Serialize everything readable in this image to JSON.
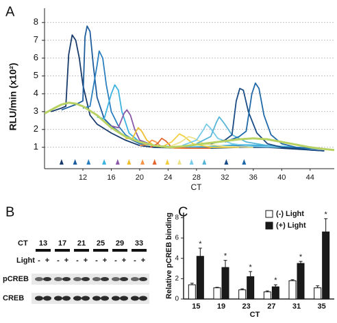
{
  "panel_labels": [
    "A",
    "B",
    "C"
  ],
  "chart_data": [
    {
      "type": "line",
      "ylabel": "RLU/min (x10²)",
      "xlabel": "CT",
      "xlim": [
        6.6,
        47.4
      ],
      "xticks": [
        12,
        16,
        20,
        24,
        28,
        32,
        36,
        40,
        44
      ],
      "ylim": [
        -0.2,
        8.8
      ],
      "yticks": [
        1,
        2,
        3,
        4,
        5,
        6,
        7,
        8
      ],
      "grid": true,
      "series": [
        {
          "color": "#173a6b",
          "x": [
            7.5,
            9,
            9.6,
            10,
            10.5,
            11,
            11.5,
            12,
            13,
            14,
            16,
            18,
            20,
            22,
            26,
            30,
            34,
            38,
            42,
            46
          ],
          "values": [
            3.0,
            3.2,
            3.3,
            6.2,
            7.3,
            7.0,
            6.0,
            4.5,
            2.8,
            2.3,
            1.8,
            1.4,
            1.1,
            1.0,
            0.95,
            0.95,
            1.0,
            1.0,
            0.9,
            0.8
          ]
        },
        {
          "color": "#1d5c9c",
          "x": [
            9,
            11,
            12,
            12.3,
            12.6,
            13,
            13.5,
            14,
            15,
            16,
            18,
            20,
            24,
            28,
            32,
            36,
            40,
            44,
            46
          ],
          "values": [
            3.1,
            3.4,
            3.6,
            7.2,
            7.8,
            7.5,
            5.5,
            3.8,
            2.6,
            2.2,
            1.6,
            1.2,
            1.0,
            0.95,
            1.0,
            1.1,
            1.05,
            0.95,
            0.9
          ]
        },
        {
          "color": "#2c7fbf",
          "x": [
            12,
            13,
            14,
            14.3,
            14.8,
            15.3,
            16,
            17,
            18,
            20,
            24,
            28,
            32,
            36,
            40,
            44
          ],
          "values": [
            3.2,
            3.3,
            5.6,
            6.4,
            6.0,
            4.5,
            3.0,
            2.2,
            1.7,
            1.2,
            1.0,
            1.0,
            1.05,
            1.1,
            1.0,
            0.9
          ]
        },
        {
          "color": "#3db2e0",
          "x": [
            14,
            15,
            16,
            16.5,
            17,
            17.5,
            18.5,
            20,
            22,
            26,
            30,
            34,
            38,
            42,
            46
          ],
          "values": [
            2.7,
            2.6,
            4.0,
            4.5,
            4.2,
            3.0,
            1.8,
            1.3,
            1.1,
            1.0,
            1.05,
            1.15,
            1.1,
            1.0,
            0.9
          ]
        },
        {
          "color": "#8a58a6",
          "x": [
            16,
            17,
            17.8,
            18.2,
            18.7,
            19.3,
            20,
            22,
            24
          ],
          "values": [
            2.2,
            2.1,
            2.9,
            3.1,
            2.8,
            2.0,
            1.4,
            1.1,
            1.0
          ]
        },
        {
          "color": "#efc02e",
          "x": [
            18,
            19,
            19.5,
            19.8,
            20.3,
            21,
            22,
            24,
            26
          ],
          "values": [
            1.5,
            1.5,
            1.9,
            2.1,
            1.9,
            1.4,
            1.1,
            1.0,
            0.95
          ]
        },
        {
          "color": "#f3944a",
          "x": [
            20,
            21,
            21.7,
            22.3,
            23,
            25,
            28
          ],
          "values": [
            1.1,
            1.15,
            1.4,
            1.3,
            1.05,
            0.95,
            0.95
          ]
        },
        {
          "color": "#e2642f",
          "x": [
            21.5,
            22.5,
            23.1,
            23.7,
            24.5,
            27,
            30
          ],
          "values": [
            1.0,
            1.2,
            1.5,
            1.35,
            1.0,
            0.95,
            0.95
          ]
        },
        {
          "color": "#f2cf3c",
          "x": [
            23,
            24.5,
            25.6,
            26.3,
            27.5,
            30,
            34
          ],
          "values": [
            1.0,
            1.3,
            1.75,
            1.6,
            1.2,
            1.0,
            1.0
          ]
        },
        {
          "color": "#ede28a",
          "x": [
            24,
            25.8,
            26.9,
            27.7,
            29,
            32,
            36
          ],
          "values": [
            1.0,
            1.3,
            1.6,
            1.5,
            1.2,
            1.05,
            1.0
          ]
        },
        {
          "color": "#78cbe8",
          "x": [
            26,
            28,
            29,
            29.4,
            29.9,
            31,
            33,
            36,
            40,
            44,
            46
          ],
          "values": [
            1.1,
            1.4,
            2.0,
            2.3,
            2.1,
            1.5,
            1.2,
            1.05,
            1.0,
            0.95,
            0.9
          ]
        },
        {
          "color": "#56b5d6",
          "x": [
            28,
            30,
            30.8,
            31.2,
            31.8,
            33,
            35,
            38,
            42,
            46
          ],
          "values": [
            1.2,
            1.6,
            2.4,
            2.7,
            2.4,
            1.7,
            1.3,
            1.1,
            0.95,
            0.9
          ]
        },
        {
          "color": "#184a85",
          "x": [
            30,
            32,
            33,
            33.6,
            34.1,
            34.6,
            35.3,
            36.5,
            38,
            40,
            42,
            44,
            46
          ],
          "values": [
            1.2,
            1.4,
            1.7,
            3.6,
            4.3,
            4.2,
            3.0,
            1.8,
            1.2,
            1.0,
            0.95,
            0.85,
            0.8
          ]
        },
        {
          "color": "#1f68a8",
          "x": [
            32,
            34,
            35,
            35.8,
            36.3,
            36.8,
            37.5,
            38.5,
            40,
            42,
            44,
            46
          ],
          "values": [
            1.3,
            1.6,
            1.9,
            4.0,
            4.6,
            4.3,
            2.8,
            1.7,
            1.2,
            1.0,
            0.95,
            0.9
          ]
        },
        {
          "color": "#b7d162",
          "x": [
            6.6,
            8,
            9,
            10,
            11,
            12,
            14,
            16,
            18,
            20,
            22,
            24,
            26,
            28,
            30,
            32,
            34,
            36,
            38,
            40,
            42,
            44,
            46,
            47.4
          ],
          "values": [
            2.9,
            3.2,
            3.4,
            3.5,
            3.45,
            3.3,
            2.8,
            2.1,
            1.6,
            1.3,
            1.1,
            1.0,
            1.05,
            1.15,
            1.25,
            1.35,
            1.45,
            1.5,
            1.45,
            1.3,
            1.15,
            1.0,
            0.9,
            0.85
          ]
        }
      ],
      "arrows": {
        "x": [
          9.0,
          10.9,
          12.8,
          15.0,
          16.9,
          18.5,
          20.4,
          22.1,
          23.9,
          25.6,
          27.3,
          29.1,
          32.2,
          34.7
        ],
        "colors": [
          "#173a6b",
          "#1d5c9c",
          "#2c7fbf",
          "#3db2e0",
          "#8a58a6",
          "#efc02e",
          "#f3944a",
          "#e2642f",
          "#f2cf3c",
          "#ede28a",
          "#78cbe8",
          "#56b5d6",
          "#184a85",
          "#1f68a8"
        ]
      }
    },
    {
      "type": "bar",
      "ylabel": "Relative pCREB binding",
      "xlabel": "CT",
      "categories": [
        "15",
        "19",
        "23",
        "27",
        "31",
        "35"
      ],
      "ylim": [
        0,
        8.5
      ],
      "yticks": [
        0,
        2,
        4,
        6,
        8
      ],
      "legend": "top-right",
      "series": [
        {
          "name": "(-) Light",
          "color": "#ffffff",
          "values": [
            1.4,
            1.1,
            0.9,
            0.7,
            1.8,
            1.1
          ],
          "errors": [
            0.15,
            0.05,
            0.1,
            0.1,
            0.1,
            0.2
          ]
        },
        {
          "name": "(+) Light",
          "color": "#1a1a1a",
          "values": [
            4.2,
            3.1,
            2.2,
            1.2,
            3.5,
            6.6
          ],
          "errors": [
            0.8,
            0.7,
            0.5,
            0.2,
            0.2,
            1.3
          ]
        }
      ],
      "significance": [
        "*",
        "*",
        "*",
        "*",
        "*",
        "*"
      ]
    }
  ],
  "blot": {
    "ct_label": "CT",
    "ct_values": [
      "13",
      "17",
      "21",
      "25",
      "29",
      "33"
    ],
    "light_label": "Light",
    "light": [
      "-",
      "+",
      "-",
      "+",
      "-",
      "+",
      "-",
      "+",
      "-",
      "+",
      "-",
      "+"
    ],
    "rows": [
      "pCREB",
      "CREB"
    ]
  }
}
